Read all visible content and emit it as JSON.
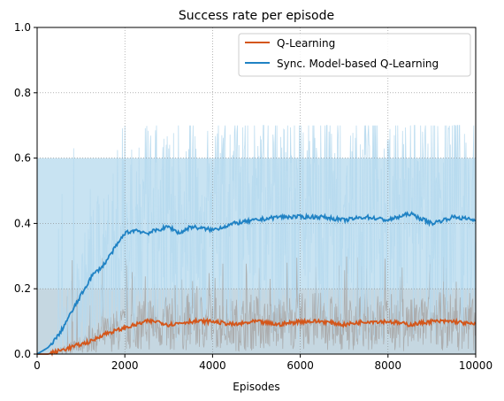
{
  "chart_data": {
    "type": "line",
    "title": "Success rate per episode",
    "xlabel": "Episodes",
    "ylabel": "",
    "xlim": [
      0,
      10000
    ],
    "ylim": [
      0,
      1.0
    ],
    "xticks": [
      0,
      2000,
      4000,
      6000,
      8000,
      10000
    ],
    "yticks": [
      0.0,
      0.2,
      0.4,
      0.6,
      0.8,
      1.0
    ],
    "xtick_labels": [
      "0",
      "2000",
      "4000",
      "6000",
      "8000",
      "10000"
    ],
    "ytick_labels": [
      "0.0",
      "0.2",
      "0.4",
      "0.6",
      "0.8",
      "1.0"
    ],
    "grid": "dotted",
    "legend_position": "top-right",
    "series": [
      {
        "name": "Q-Learning",
        "color": "#d4561a",
        "raw_color": "#a9a9a9",
        "band_color": "#f0c8b2",
        "band_max": 0.2,
        "raw_max": 0.3,
        "smoothed": [
          {
            "x": 0,
            "y": 0.0
          },
          {
            "x": 250,
            "y": 0.0
          },
          {
            "x": 500,
            "y": 0.01
          },
          {
            "x": 750,
            "y": 0.02
          },
          {
            "x": 1000,
            "y": 0.03
          },
          {
            "x": 1250,
            "y": 0.04
          },
          {
            "x": 1500,
            "y": 0.06
          },
          {
            "x": 1750,
            "y": 0.07
          },
          {
            "x": 2000,
            "y": 0.08
          },
          {
            "x": 2250,
            "y": 0.09
          },
          {
            "x": 2500,
            "y": 0.1
          },
          {
            "x": 2750,
            "y": 0.1
          },
          {
            "x": 3000,
            "y": 0.09
          },
          {
            "x": 3500,
            "y": 0.1
          },
          {
            "x": 4000,
            "y": 0.1
          },
          {
            "x": 4500,
            "y": 0.09
          },
          {
            "x": 5000,
            "y": 0.1
          },
          {
            "x": 5500,
            "y": 0.09
          },
          {
            "x": 6000,
            "y": 0.1
          },
          {
            "x": 6500,
            "y": 0.1
          },
          {
            "x": 7000,
            "y": 0.09
          },
          {
            "x": 7500,
            "y": 0.1
          },
          {
            "x": 8000,
            "y": 0.1
          },
          {
            "x": 8500,
            "y": 0.09
          },
          {
            "x": 9000,
            "y": 0.1
          },
          {
            "x": 9500,
            "y": 0.1
          },
          {
            "x": 10000,
            "y": 0.09
          }
        ]
      },
      {
        "name": "Sync. Model-based Q-Learning",
        "color": "#1f82c4",
        "raw_color": "#b6d9ee",
        "band_color": "#b6d9ee",
        "band_max": 0.6,
        "raw_max": 0.7,
        "smoothed": [
          {
            "x": 0,
            "y": 0.0
          },
          {
            "x": 250,
            "y": 0.02
          },
          {
            "x": 500,
            "y": 0.06
          },
          {
            "x": 750,
            "y": 0.12
          },
          {
            "x": 1000,
            "y": 0.18
          },
          {
            "x": 1250,
            "y": 0.24
          },
          {
            "x": 1500,
            "y": 0.27
          },
          {
            "x": 1750,
            "y": 0.32
          },
          {
            "x": 2000,
            "y": 0.37
          },
          {
            "x": 2250,
            "y": 0.38
          },
          {
            "x": 2500,
            "y": 0.37
          },
          {
            "x": 2750,
            "y": 0.38
          },
          {
            "x": 3000,
            "y": 0.39
          },
          {
            "x": 3250,
            "y": 0.37
          },
          {
            "x": 3500,
            "y": 0.39
          },
          {
            "x": 4000,
            "y": 0.38
          },
          {
            "x": 4500,
            "y": 0.4
          },
          {
            "x": 5000,
            "y": 0.41
          },
          {
            "x": 5500,
            "y": 0.42
          },
          {
            "x": 6000,
            "y": 0.42
          },
          {
            "x": 6500,
            "y": 0.42
          },
          {
            "x": 7000,
            "y": 0.41
          },
          {
            "x": 7500,
            "y": 0.42
          },
          {
            "x": 8000,
            "y": 0.41
          },
          {
            "x": 8500,
            "y": 0.43
          },
          {
            "x": 9000,
            "y": 0.4
          },
          {
            "x": 9500,
            "y": 0.42
          },
          {
            "x": 10000,
            "y": 0.41
          }
        ]
      }
    ]
  }
}
